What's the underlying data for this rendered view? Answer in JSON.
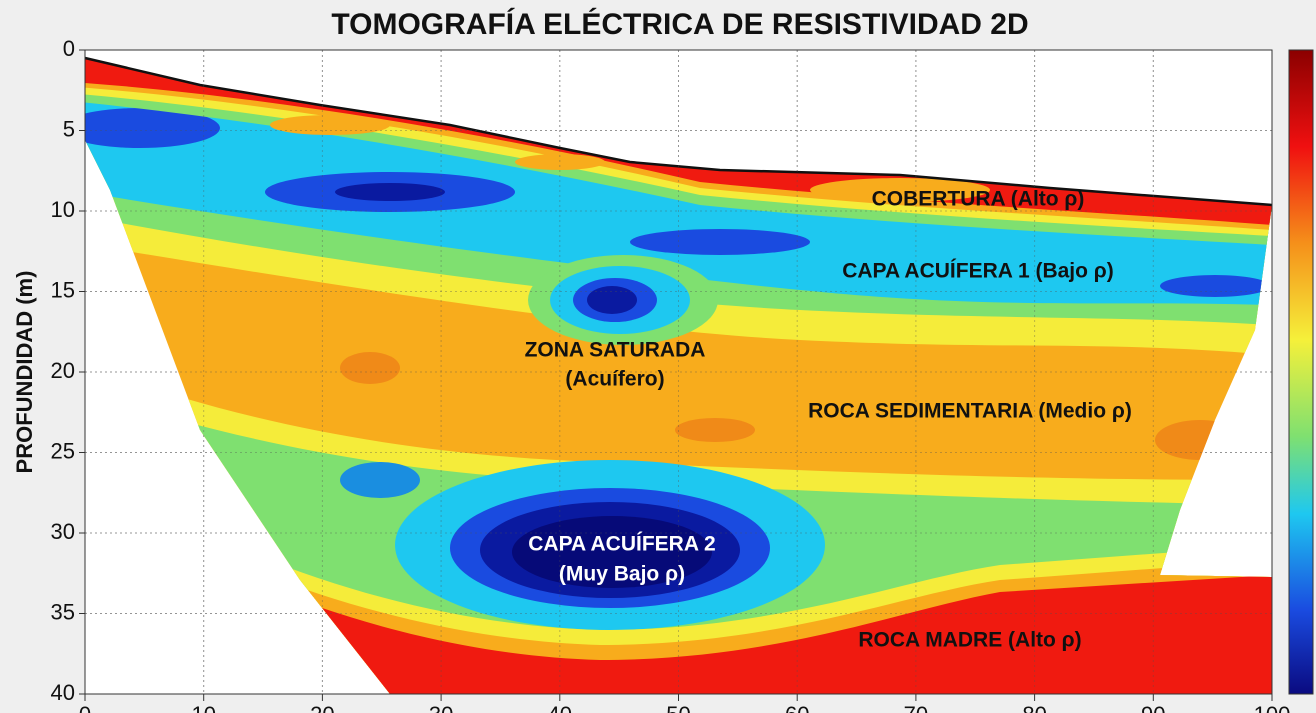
{
  "chart_data": {
    "type": "contour",
    "title": "TOMOGRAFÍA ELÉCTRICA DE RESISTIVIDAD 2D",
    "ylabel": "PROFUNDIDAD (m)",
    "xlim": [
      0,
      100
    ],
    "xticks": [
      0,
      10,
      20,
      30,
      40,
      50,
      60,
      70,
      80,
      90,
      100
    ],
    "ylim": [
      0,
      40
    ],
    "yticks": [
      0,
      5,
      10,
      15,
      20,
      25,
      30,
      35,
      40
    ],
    "y_inverted": true,
    "grid": true,
    "annotations": [
      "COBERTURA (Alto ρ)",
      "CAPA ACUÍFERA 1 (Bajo ρ)",
      "ZONA SATURADA",
      "(Acuífero)",
      "ROCA SEDIMENTARIA (Medio ρ)",
      "CAPA ACUÍFERA 2",
      "(Muy Bajo ρ)",
      "ROCA MADRE (Alto ρ)"
    ]
  }
}
